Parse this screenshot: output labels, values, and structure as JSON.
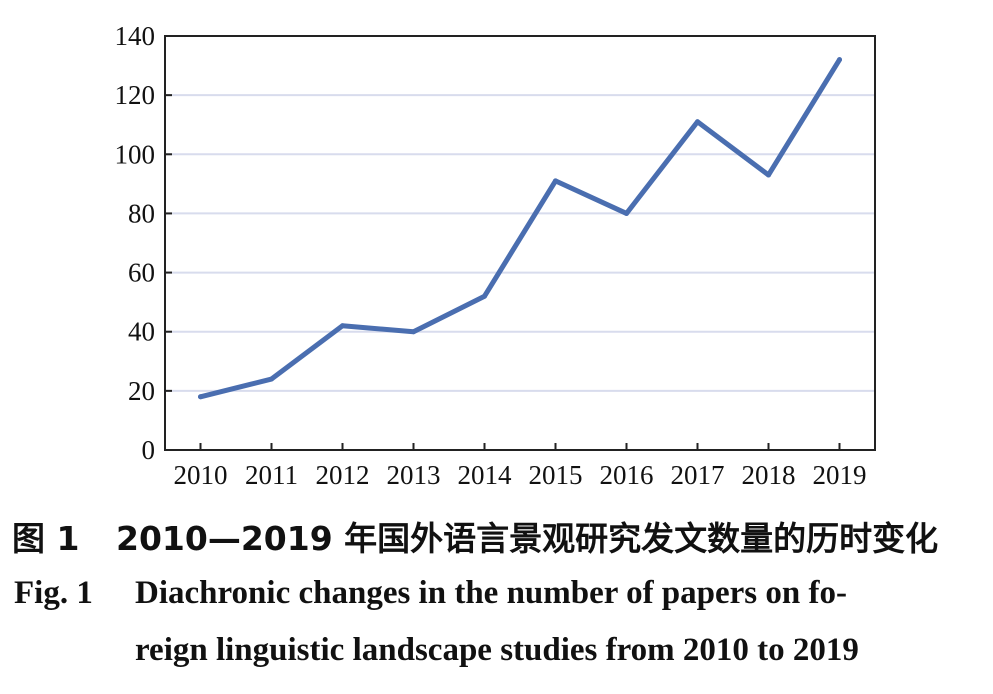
{
  "chart_data": {
    "type": "line",
    "x": [
      "2010",
      "2011",
      "2012",
      "2013",
      "2014",
      "2015",
      "2016",
      "2017",
      "2018",
      "2019"
    ],
    "series": [
      {
        "values": [
          18,
          24,
          42,
          40,
          52,
          91,
          80,
          111,
          93,
          132
        ]
      }
    ],
    "ylim": [
      0,
      140
    ],
    "yticks": [
      0,
      20,
      40,
      60,
      80,
      100,
      120,
      140
    ],
    "grid": "horizontal",
    "line_color": "#4a6eb0",
    "grid_color": "#d8dced"
  },
  "caption": {
    "cn_label": "图 1",
    "cn_text": "2010—2019 年国外语言景观研究发文数量的历时变化",
    "en_label": "Fig. 1",
    "en_line1": "Diachronic changes in the number of papers on fo-",
    "en_line2": "reign linguistic landscape studies from 2010 to 2019"
  }
}
